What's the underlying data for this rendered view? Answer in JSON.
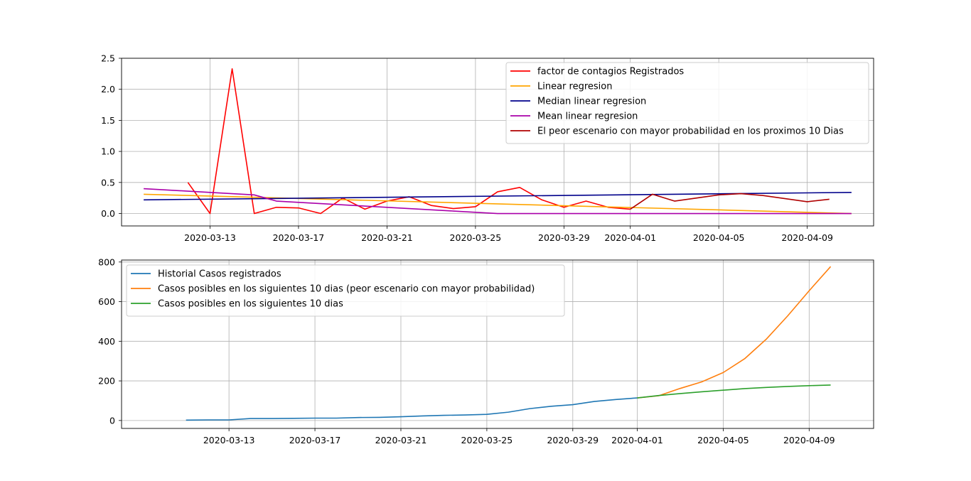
{
  "chart_data": [
    {
      "type": "line",
      "x_type": "date",
      "xlim": [
        "2020-03-09",
        "2020-04-12"
      ],
      "ylim": [
        -0.2,
        2.5
      ],
      "grid": true,
      "legend_position": "top-right",
      "x_ticks": [
        "2020-03-13",
        "2020-03-17",
        "2020-03-21",
        "2020-03-25",
        "2020-03-29",
        "2020-04-01",
        "2020-04-05",
        "2020-04-09"
      ],
      "y_ticks": [
        "0.0",
        "0.5",
        "1.0",
        "1.5",
        "2.0",
        "2.5"
      ],
      "series": [
        {
          "name": "factor de contagios Registrados",
          "color": "#ff0000",
          "x": [
            "2020-03-12",
            "2020-03-13",
            "2020-03-14",
            "2020-03-15",
            "2020-03-16",
            "2020-03-17",
            "2020-03-18",
            "2020-03-19",
            "2020-03-20",
            "2020-03-21",
            "2020-03-22",
            "2020-03-23",
            "2020-03-24",
            "2020-03-25",
            "2020-03-26",
            "2020-03-27",
            "2020-03-28",
            "2020-03-29",
            "2020-03-30",
            "2020-03-31",
            "2020-04-01"
          ],
          "y": [
            0.5,
            0.0,
            2.33,
            0.0,
            0.1,
            0.09,
            0.0,
            0.25,
            0.07,
            0.2,
            0.27,
            0.13,
            0.08,
            0.11,
            0.35,
            0.42,
            0.22,
            0.1,
            0.2,
            0.1,
            0.07
          ]
        },
        {
          "name": "Linear regresion",
          "color": "#ffa500",
          "x": [
            "2020-03-10",
            "2020-04-11"
          ],
          "y": [
            0.31,
            0.0
          ]
        },
        {
          "name": "Median linear regresion",
          "color": "#00008b",
          "x": [
            "2020-03-10",
            "2020-04-11"
          ],
          "y": [
            0.22,
            0.34
          ]
        },
        {
          "name": "Mean linear regresion",
          "color": "#aa00aa",
          "x": [
            "2020-03-10",
            "2020-03-11",
            "2020-03-12",
            "2020-03-13",
            "2020-03-14",
            "2020-03-15",
            "2020-03-16",
            "2020-03-17",
            "2020-03-18",
            "2020-03-19",
            "2020-03-20",
            "2020-03-21",
            "2020-03-22",
            "2020-03-23",
            "2020-03-24",
            "2020-03-25",
            "2020-03-26",
            "2020-03-27",
            "2020-03-28",
            "2020-03-29",
            "2020-03-30",
            "2020-03-31",
            "2020-04-01",
            "2020-04-02",
            "2020-04-03",
            "2020-04-04",
            "2020-04-05",
            "2020-04-06",
            "2020-04-07",
            "2020-04-08",
            "2020-04-09",
            "2020-04-10",
            "2020-04-11"
          ],
          "y": [
            0.4,
            0.38,
            0.36,
            0.34,
            0.32,
            0.3,
            0.2,
            0.18,
            0.16,
            0.14,
            0.12,
            0.1,
            0.08,
            0.06,
            0.04,
            0.02,
            0.0,
            0.0,
            0.0,
            0.0,
            0.0,
            0.0,
            0.0,
            0.0,
            0.0,
            0.0,
            0.0,
            0.0,
            0.0,
            0.0,
            0.0,
            0.0,
            0.0
          ]
        },
        {
          "name": "El peor escenario con mayor probabilidad en los proximos 10 Dias",
          "color": "#b00000",
          "x": [
            "2020-04-01",
            "2020-04-02",
            "2020-04-03",
            "2020-04-04",
            "2020-04-05",
            "2020-04-06",
            "2020-04-07",
            "2020-04-08",
            "2020-04-09",
            "2020-04-10"
          ],
          "y": [
            0.07,
            0.31,
            0.2,
            0.25,
            0.3,
            0.32,
            0.29,
            0.24,
            0.19,
            0.23
          ]
        }
      ]
    },
    {
      "type": "line",
      "x_type": "date",
      "xlim": [
        "2020-03-08",
        "2020-04-12"
      ],
      "ylim": [
        -40,
        810
      ],
      "grid": true,
      "legend_position": "top-left",
      "x_ticks": [
        "2020-03-13",
        "2020-03-17",
        "2020-03-21",
        "2020-03-25",
        "2020-03-29",
        "2020-04-01",
        "2020-04-05",
        "2020-04-09"
      ],
      "y_ticks": [
        "0",
        "200",
        "400",
        "600",
        "800"
      ],
      "series": [
        {
          "name": "Historial Casos registrados",
          "color": "#1f77b4",
          "x": [
            "2020-03-11",
            "2020-03-12",
            "2020-03-13",
            "2020-03-14",
            "2020-03-15",
            "2020-03-16",
            "2020-03-17",
            "2020-03-18",
            "2020-03-19",
            "2020-03-20",
            "2020-03-21",
            "2020-03-22",
            "2020-03-23",
            "2020-03-24",
            "2020-03-25",
            "2020-03-26",
            "2020-03-27",
            "2020-03-28",
            "2020-03-29",
            "2020-03-30",
            "2020-03-31",
            "2020-04-01"
          ],
          "y": [
            2,
            3,
            3,
            10,
            10,
            11,
            12,
            12,
            15,
            16,
            19,
            23,
            26,
            28,
            31,
            42,
            60,
            72,
            80,
            96,
            106,
            114
          ]
        },
        {
          "name": "Casos posibles en los siguientes 10 dias (peor escenario con mayor probabilidad)",
          "color": "#ff7f0e",
          "x": [
            "2020-04-01",
            "2020-04-02",
            "2020-04-03",
            "2020-04-04",
            "2020-04-05",
            "2020-04-06",
            "2020-04-07",
            "2020-04-08",
            "2020-04-09",
            "2020-04-10"
          ],
          "y": [
            114,
            125,
            162,
            195,
            242,
            312,
            410,
            528,
            655,
            777
          ]
        },
        {
          "name": "Casos posibles en los siguientes 10 dias",
          "color": "#2ca02c",
          "x": [
            "2020-04-01",
            "2020-04-02",
            "2020-04-03",
            "2020-04-04",
            "2020-04-05",
            "2020-04-06",
            "2020-04-07",
            "2020-04-08",
            "2020-04-09",
            "2020-04-10"
          ],
          "y": [
            114,
            126,
            136,
            145,
            153,
            161,
            167,
            172,
            176,
            179
          ]
        }
      ]
    }
  ]
}
